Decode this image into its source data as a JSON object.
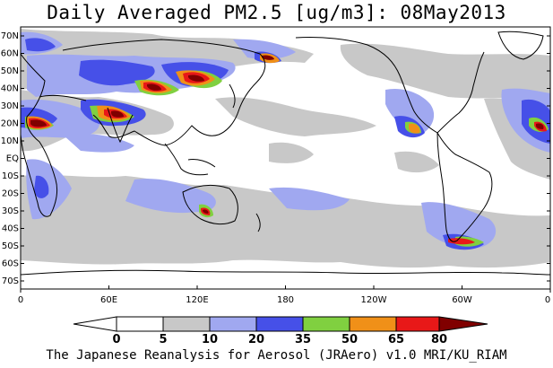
{
  "title": "Daily Averaged PM2.5 [ug/m3]: 08May2013",
  "footer": "The Japanese Reanalysis for Aerosol (JRAero) v1.0 MRI/KU_RIAM",
  "lat_labels": [
    "70N",
    "60N",
    "50N",
    "40N",
    "30N",
    "20N",
    "10N",
    "EQ",
    "10S",
    "20S",
    "30S",
    "40S",
    "50S",
    "60S",
    "70S"
  ],
  "lon_labels": [
    "0",
    "60E",
    "120E",
    "180",
    "120W",
    "60W",
    "0"
  ],
  "colorbar": {
    "labels": [
      "0",
      "5",
      "10",
      "20",
      "35",
      "50",
      "65",
      "80"
    ],
    "colors": [
      "#ffffff",
      "#c8c8c8",
      "#a0a8f0",
      "#4650e8",
      "#80d040",
      "#f09018",
      "#e81818",
      "#800000"
    ]
  },
  "colors": {
    "bin1": "#c8c8c8",
    "bin2": "#a0a8f0",
    "bin3": "#4650e8",
    "bin4": "#80d040",
    "bin5": "#f09018",
    "bin6": "#e81818",
    "bin7": "#800000"
  }
}
